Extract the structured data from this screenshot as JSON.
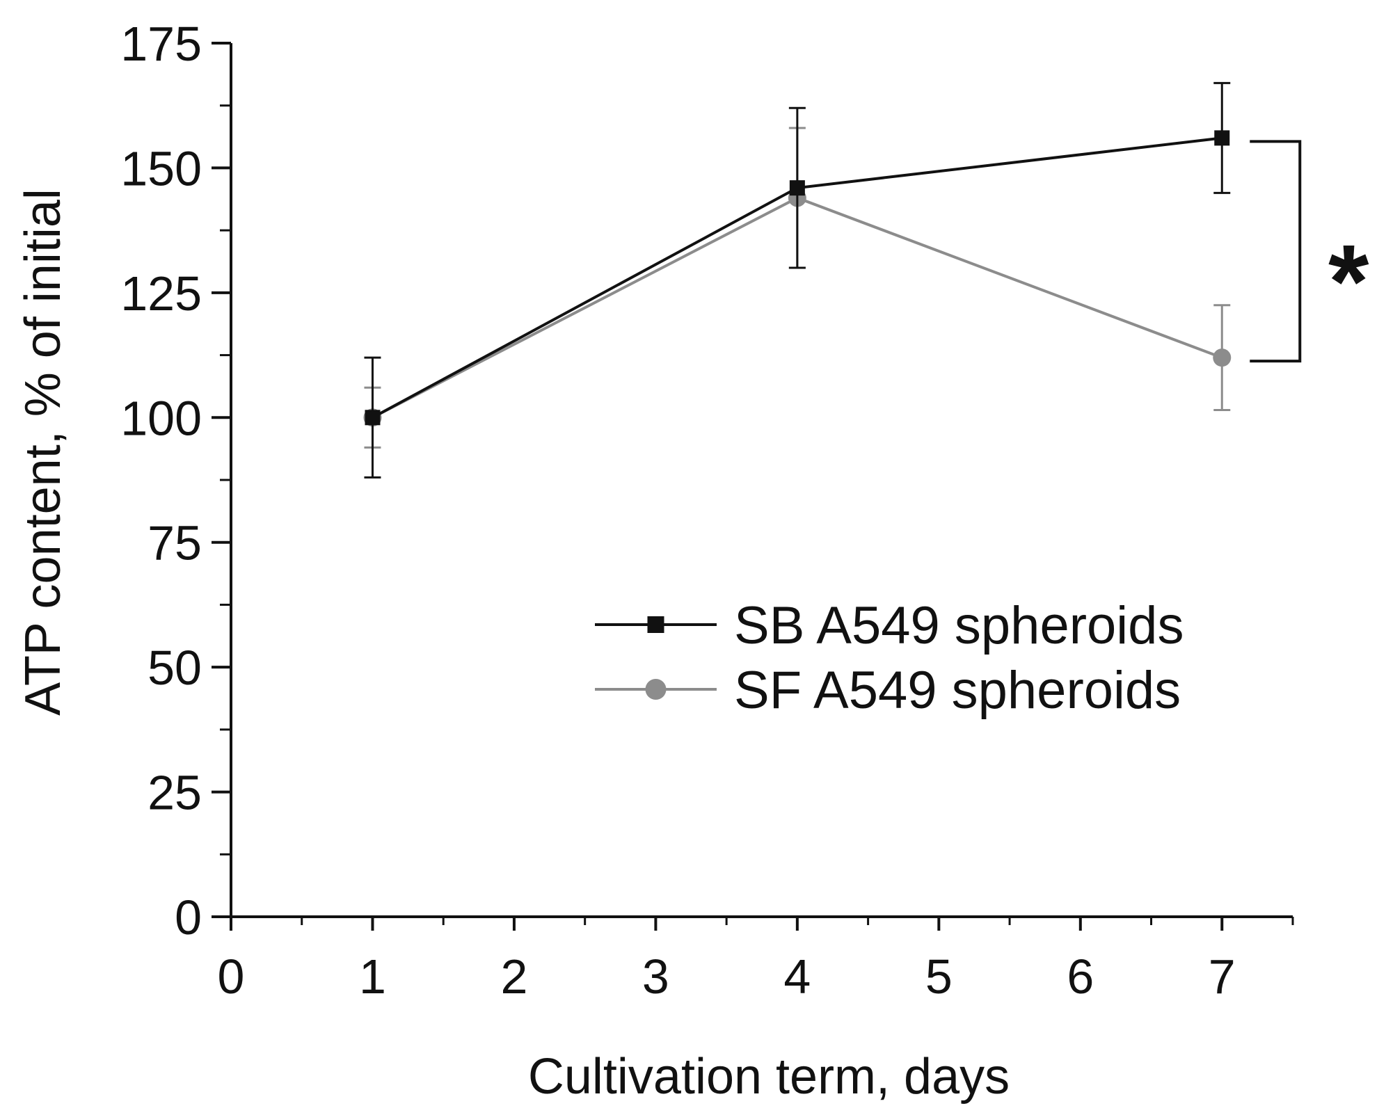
{
  "chart_data": {
    "type": "line",
    "title": "",
    "xlabel": "Cultivation term, days",
    "ylabel": "ATP content, % of initial",
    "xlim": [
      0,
      7.5
    ],
    "ylim": [
      0,
      175
    ],
    "xticks": [
      0,
      1,
      2,
      3,
      4,
      5,
      6,
      7
    ],
    "yticks": [
      0,
      25,
      50,
      75,
      100,
      125,
      150,
      175
    ],
    "grid": false,
    "legend_position": "bottom-right",
    "series": [
      {
        "name": "SB A549 spheroids",
        "marker": "square",
        "color": "#111111",
        "x": [
          1,
          4,
          7
        ],
        "y": [
          100,
          146,
          156
        ],
        "error": [
          12,
          16,
          11
        ]
      },
      {
        "name": "SF A549 spheroids",
        "marker": "circle",
        "color": "#8c8c8c",
        "x": [
          1,
          4,
          7
        ],
        "y": [
          100,
          144,
          112
        ],
        "error": [
          6,
          14,
          10.5
        ]
      }
    ],
    "annotations": [
      {
        "text": "*",
        "between_series": [
          "SB A549 spheroids",
          "SF A549 spheroids"
        ],
        "at_x": 7
      }
    ]
  }
}
